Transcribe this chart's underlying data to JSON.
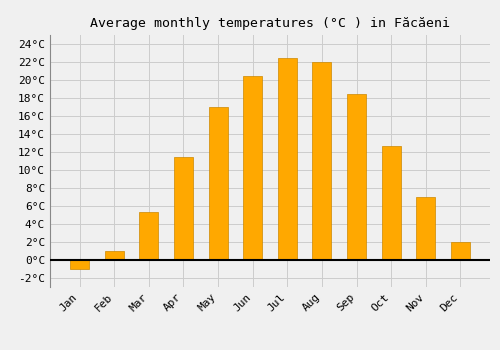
{
  "title": "Average monthly temperatures (°C ) in Făcăeni",
  "months": [
    "Jan",
    "Feb",
    "Mar",
    "Apr",
    "May",
    "Jun",
    "Jul",
    "Aug",
    "Sep",
    "Oct",
    "Nov",
    "Dec"
  ],
  "values": [
    -1.0,
    1.0,
    5.3,
    11.5,
    17.0,
    20.5,
    22.5,
    22.0,
    18.5,
    12.7,
    7.0,
    2.0
  ],
  "bar_color": "#FFA800",
  "bar_edge_color": "#CC8800",
  "background_color": "#F0F0F0",
  "grid_color": "#CCCCCC",
  "ylim": [
    -3,
    25
  ],
  "yticks": [
    -2,
    0,
    2,
    4,
    6,
    8,
    10,
    12,
    14,
    16,
    18,
    20,
    22,
    24
  ],
  "title_fontsize": 9.5,
  "tick_fontsize": 8,
  "zero_line_color": "#000000",
  "bar_width": 0.55
}
